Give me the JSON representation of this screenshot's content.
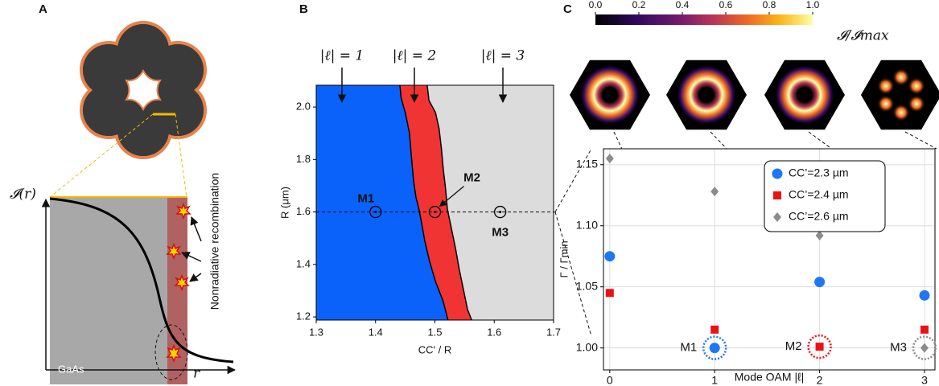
{
  "panel_labels": [
    "A",
    "B",
    "C"
  ],
  "diagram": {
    "y_label": "𝓘(r)",
    "x_label": "r",
    "material": "GaAs",
    "annotation": "Nonradiative recombination"
  },
  "chart_data": [
    {
      "type": "region_map",
      "x_label": "CC' / R",
      "y_label": "R (μm)",
      "xlim": [
        1.3,
        1.7
      ],
      "xticks": [
        1.3,
        1.4,
        1.5,
        1.6,
        1.7
      ],
      "ylim": [
        1.188,
        2.083
      ],
      "yticks": [
        1.2,
        1.4,
        1.6,
        1.8,
        {
          "value": 2,
          "label": "2.0"
        }
      ],
      "regions": [
        {
          "label": "|ℓ| = 1",
          "color": "#0b62fb"
        },
        {
          "label": "|ℓ| = 2",
          "color": "#f03434"
        },
        {
          "label": "|ℓ| = 3",
          "color": "#dcdcdc"
        }
      ],
      "boundaries": [
        {
          "x": [
            1.441,
            1.443,
            1.45,
            1.457,
            1.461,
            1.464,
            1.468,
            1.473,
            1.477,
            1.483,
            1.491,
            1.501,
            1.514,
            1.522
          ],
          "y": [
            2.083,
            2.035,
            1.979,
            1.903,
            1.795,
            1.719,
            1.657,
            1.611,
            1.565,
            1.489,
            1.412,
            1.335,
            1.259,
            1.188
          ]
        },
        {
          "x": [
            1.487,
            1.49,
            1.501,
            1.507,
            1.511,
            1.514,
            1.518,
            1.521,
            1.528,
            1.535,
            1.541,
            1.548,
            1.555,
            1.562
          ],
          "y": [
            2.083,
            2.025,
            1.979,
            1.918,
            1.841,
            1.765,
            1.688,
            1.611,
            1.535,
            1.458,
            1.381,
            1.305,
            1.228,
            1.188
          ]
        }
      ],
      "points": {
        "labels": [
          "M1",
          "M2",
          "M3"
        ],
        "x": [
          1.4,
          1.5,
          1.61
        ],
        "y": [
          1.6,
          1.6,
          1.6
        ]
      }
    },
    {
      "type": "scatter",
      "x_label": "Mode OAM |ℓ|",
      "y_label": "Γ / Γmin",
      "xlim": [
        -0.06,
        3.1
      ],
      "xticks": [
        0,
        1,
        2,
        3
      ],
      "ylim": [
        0.982,
        1.163
      ],
      "yticks": [
        {
          "value": 1,
          "label": "1.00"
        },
        1.05,
        {
          "value": 1.1,
          "label": "1.10"
        },
        1.15
      ],
      "grid": true,
      "x": [
        0,
        1,
        2,
        3
      ],
      "series": [
        {
          "name": "CC’=2.3 µm",
          "color": "#1f77f4",
          "marker": "circle",
          "values": [
            1.075,
            1.0,
            1.054,
            1.043
          ]
        },
        {
          "name": "CC’=2.4 µm",
          "color": "#ee1111",
          "marker": "square",
          "values": [
            1.045,
            1.015,
            1.001,
            1.015
          ]
        },
        {
          "name": "CC’=2.6 µm",
          "color": "#8c8c8c",
          "marker": "diamond",
          "values": [
            1.155,
            1.128,
            1.092,
            1.0
          ]
        }
      ],
      "annotations": [
        {
          "text": "M1",
          "x": 1,
          "y": 1
        },
        {
          "text": "M2",
          "x": 2,
          "y": 1.001
        },
        {
          "text": "M3",
          "x": 3,
          "y": 1
        }
      ],
      "colorbar": {
        "ticks": [
          {
            "value": 0,
            "label": "0.0"
          },
          0.2,
          0.4,
          0.6,
          0.8,
          {
            "value": 1,
            "label": "1.0"
          }
        ],
        "label": "𝓘/𝓘max"
      }
    }
  ]
}
